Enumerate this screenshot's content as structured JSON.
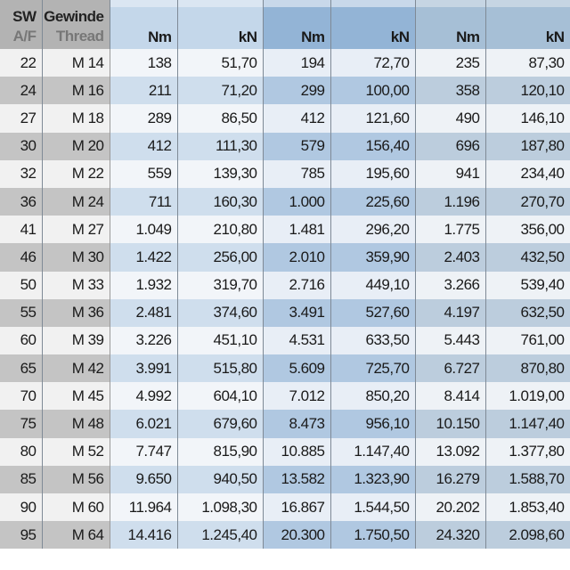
{
  "header": {
    "sw": "SW",
    "af": "A/F",
    "gewinde": "Gewinde",
    "thread": "Thread",
    "units": [
      "Nm",
      "kN",
      "Nm",
      "kN",
      "Nm",
      "kN"
    ]
  },
  "colors": {
    "group1": "#cfdeed",
    "group2": "#b0c8e1",
    "group3": "#bccddd",
    "gray": "#c4c4c4"
  },
  "rows": [
    [
      "22",
      "M 14",
      "138",
      "51,70",
      "194",
      "72,70",
      "235",
      "87,30"
    ],
    [
      "24",
      "M 16",
      "211",
      "71,20",
      "299",
      "100,00",
      "358",
      "120,10"
    ],
    [
      "27",
      "M 18",
      "289",
      "86,50",
      "412",
      "121,60",
      "490",
      "146,10"
    ],
    [
      "30",
      "M 20",
      "412",
      "111,30",
      "579",
      "156,40",
      "696",
      "187,80"
    ],
    [
      "32",
      "M 22",
      "559",
      "139,30",
      "785",
      "195,60",
      "941",
      "234,40"
    ],
    [
      "36",
      "M 24",
      "711",
      "160,30",
      "1.000",
      "225,60",
      "1.196",
      "270,70"
    ],
    [
      "41",
      "M 27",
      "1.049",
      "210,80",
      "1.481",
      "296,20",
      "1.775",
      "356,00"
    ],
    [
      "46",
      "M 30",
      "1.422",
      "256,00",
      "2.010",
      "359,90",
      "2.403",
      "432,50"
    ],
    [
      "50",
      "M 33",
      "1.932",
      "319,70",
      "2.716",
      "449,10",
      "3.266",
      "539,40"
    ],
    [
      "55",
      "M 36",
      "2.481",
      "374,60",
      "3.491",
      "527,60",
      "4.197",
      "632,50"
    ],
    [
      "60",
      "M 39",
      "3.226",
      "451,10",
      "4.531",
      "633,50",
      "5.443",
      "761,00"
    ],
    [
      "65",
      "M 42",
      "3.991",
      "515,80",
      "5.609",
      "725,70",
      "6.727",
      "870,80"
    ],
    [
      "70",
      "M 45",
      "4.992",
      "604,10",
      "7.012",
      "850,20",
      "8.414",
      "1.019,00"
    ],
    [
      "75",
      "M 48",
      "6.021",
      "679,60",
      "8.473",
      "956,10",
      "10.150",
      "1.147,40"
    ],
    [
      "80",
      "M 52",
      "7.747",
      "815,90",
      "10.885",
      "1.147,40",
      "13.092",
      "1.377,80"
    ],
    [
      "85",
      "M 56",
      "9.650",
      "940,50",
      "13.582",
      "1.323,90",
      "16.279",
      "1.588,70"
    ],
    [
      "90",
      "M 60",
      "11.964",
      "1.098,30",
      "16.867",
      "1.544,50",
      "20.202",
      "1.853,40"
    ],
    [
      "95",
      "M 64",
      "14.416",
      "1.245,40",
      "20.300",
      "1.750,50",
      "24.320",
      "2.098,60"
    ]
  ]
}
